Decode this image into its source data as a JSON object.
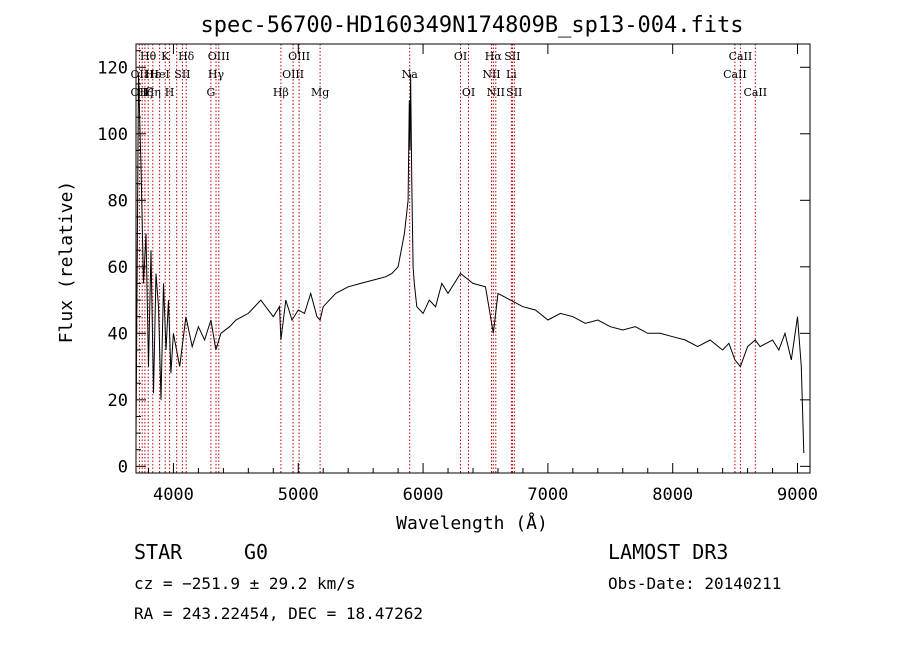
{
  "chart_data": {
    "type": "line",
    "title": "spec-56700-HD160349N174809B_sp13-004.fits",
    "xlabel": "Wavelength (Å)",
    "ylabel": "Flux (relative)",
    "xlim": [
      3700,
      9100
    ],
    "ylim": [
      -2,
      127
    ],
    "xticks": [
      4000,
      5000,
      6000,
      7000,
      8000,
      9000
    ],
    "yticks": [
      0,
      20,
      40,
      60,
      80,
      100,
      120
    ],
    "series": [
      {
        "name": "flux",
        "x": [
          3700,
          3720,
          3740,
          3760,
          3780,
          3800,
          3820,
          3840,
          3860,
          3880,
          3900,
          3920,
          3940,
          3960,
          3980,
          4000,
          4050,
          4100,
          4150,
          4200,
          4250,
          4300,
          4340,
          4380,
          4450,
          4500,
          4600,
          4700,
          4800,
          4850,
          4861,
          4900,
          4950,
          5000,
          5050,
          5100,
          5150,
          5175,
          5200,
          5300,
          5400,
          5500,
          5600,
          5700,
          5750,
          5800,
          5850,
          5880,
          5890,
          5895,
          5900,
          5910,
          5920,
          5930,
          5950,
          6000,
          6050,
          6100,
          6150,
          6200,
          6300,
          6400,
          6500,
          6563,
          6600,
          6700,
          6800,
          6900,
          7000,
          7100,
          7200,
          7300,
          7400,
          7500,
          7600,
          7700,
          7800,
          7900,
          8000,
          8100,
          8200,
          8300,
          8400,
          8450,
          8498,
          8542,
          8600,
          8662,
          8700,
          8800,
          8850,
          8900,
          8950,
          9000,
          9030,
          9050
        ],
        "values": [
          8,
          118,
          90,
          55,
          70,
          30,
          65,
          22,
          58,
          48,
          20,
          55,
          35,
          50,
          28,
          40,
          30,
          45,
          36,
          42,
          38,
          44,
          35,
          40,
          42,
          44,
          46,
          50,
          45,
          48,
          38,
          50,
          44,
          47,
          46,
          52,
          45,
          44,
          48,
          52,
          54,
          55,
          56,
          57,
          58,
          60,
          70,
          80,
          110,
          95,
          118,
          85,
          60,
          55,
          48,
          46,
          50,
          48,
          55,
          52,
          58,
          55,
          54,
          40,
          52,
          50,
          48,
          47,
          44,
          46,
          45,
          43,
          44,
          42,
          41,
          42,
          40,
          40,
          39,
          38,
          36,
          38,
          35,
          37,
          32,
          30,
          36,
          38,
          36,
          38,
          35,
          40,
          32,
          45,
          30,
          4
        ]
      }
    ],
    "line_wavelengths": [
      3727,
      3750,
      3771,
      3798,
      3835,
      3889,
      3934,
      3969,
      4026,
      4072,
      4102,
      4300,
      4341,
      4363,
      4861,
      4959,
      5007,
      5175,
      5893,
      6300,
      6364,
      6548,
      6563,
      6583,
      6708,
      6716,
      6731,
      8498,
      8542,
      8662
    ]
  },
  "line_labels": [
    {
      "text": "Hθ",
      "row": 1,
      "wl": 3797
    },
    {
      "text": "K",
      "row": 1,
      "wl": 3934
    },
    {
      "text": "Hδ",
      "row": 1,
      "wl": 4102
    },
    {
      "text": "OIII",
      "row": 1,
      "wl": 4363
    },
    {
      "text": "OIII",
      "row": 1,
      "wl": 5007
    },
    {
      "text": "OI",
      "row": 1,
      "wl": 6300
    },
    {
      "text": "Hα",
      "row": 1,
      "wl": 6563
    },
    {
      "text": "SII",
      "row": 1,
      "wl": 6716
    },
    {
      "text": "CaII",
      "row": 1,
      "wl": 8542
    },
    {
      "text": "OII",
      "row": 2,
      "wl": 3727
    },
    {
      "text": "Hε",
      "row": 2,
      "wl": 3835
    },
    {
      "text": "HeI",
      "row": 2,
      "wl": 3889
    },
    {
      "text": "SII",
      "row": 2,
      "wl": 4072
    },
    {
      "text": "Hγ",
      "row": 2,
      "wl": 4341
    },
    {
      "text": "OIII",
      "row": 2,
      "wl": 4959
    },
    {
      "text": "Na",
      "row": 2,
      "wl": 5893
    },
    {
      "text": "NII",
      "row": 2,
      "wl": 6548
    },
    {
      "text": "Li",
      "row": 2,
      "wl": 6708
    },
    {
      "text": "CaII",
      "row": 2,
      "wl": 8498
    },
    {
      "text": "OII",
      "row": 3,
      "wl": 3727
    },
    {
      "text": "Hζ",
      "row": 3,
      "wl": 3771
    },
    {
      "text": "Hη",
      "row": 3,
      "wl": 3835
    },
    {
      "text": "H",
      "row": 3,
      "wl": 3969
    },
    {
      "text": "G",
      "row": 3,
      "wl": 4300
    },
    {
      "text": "Hβ",
      "row": 3,
      "wl": 4861
    },
    {
      "text": "Mg",
      "row": 3,
      "wl": 5175
    },
    {
      "text": "OI",
      "row": 3,
      "wl": 6364
    },
    {
      "text": "NII",
      "row": 3,
      "wl": 6583
    },
    {
      "text": "SII",
      "row": 3,
      "wl": 6731
    },
    {
      "text": "CaII",
      "row": 3,
      "wl": 8662
    }
  ],
  "info": {
    "object_class": "STAR",
    "subclass": "G0",
    "survey": "LAMOST DR3",
    "cz": "cz = −251.9 ± 29.2 km/s",
    "obs_date": "Obs-Date: 20140211",
    "coords": "RA = 243.22454, DEC =  18.47262"
  },
  "colors": {
    "line_marker": "#c00000",
    "spectrum": "#000000",
    "axes": "#000000"
  }
}
